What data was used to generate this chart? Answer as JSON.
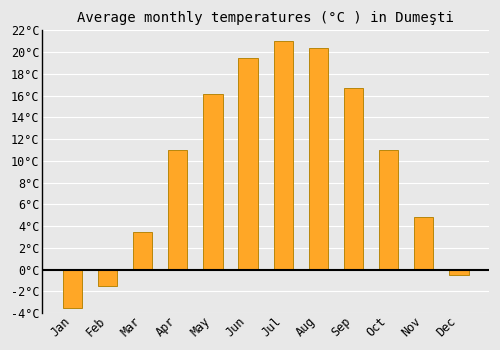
{
  "title": "Average monthly temperatures (°C ) in Dumeşti",
  "months": [
    "Jan",
    "Feb",
    "Mar",
    "Apr",
    "May",
    "Jun",
    "Jul",
    "Aug",
    "Sep",
    "Oct",
    "Nov",
    "Dec"
  ],
  "values": [
    -3.5,
    -1.5,
    3.5,
    11.0,
    16.2,
    19.5,
    21.0,
    20.4,
    16.7,
    11.0,
    4.8,
    -0.5
  ],
  "bar_color": "#FFA726",
  "bar_edge_color": "#B8860B",
  "ylim": [
    -4,
    22
  ],
  "yticks": [
    -4,
    -2,
    0,
    2,
    4,
    6,
    8,
    10,
    12,
    14,
    16,
    18,
    20,
    22
  ],
  "background_color": "#e8e8e8",
  "grid_color": "#ffffff",
  "title_fontsize": 10,
  "tick_fontsize": 8.5
}
